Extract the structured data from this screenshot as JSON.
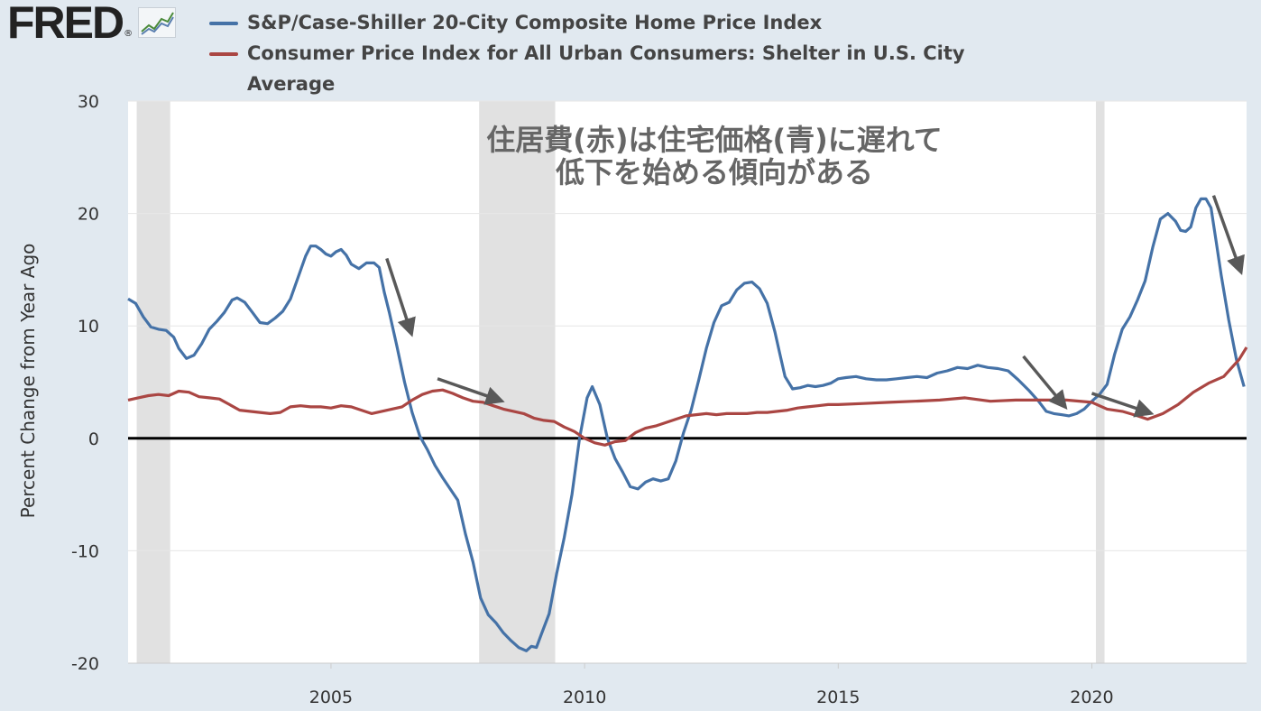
{
  "logo": {
    "text": "FRED",
    "reg": "®",
    "icon": "fred-chart-icon"
  },
  "colors": {
    "background": "#e1e9f0",
    "plot_bg": "#ffffff",
    "recession": "#e1e1e1",
    "series1": "#4572a7",
    "series2": "#aa4643",
    "zero_line": "#000000",
    "arrow": "#595959"
  },
  "annotation": {
    "line1": "住居費(赤)は住宅価格(青)に遅れて",
    "line2": "低下を始める傾向がある"
  },
  "chart_data": {
    "type": "line",
    "title": "",
    "ylabel": "Percent Change from Year Ago",
    "xlabel": "",
    "xlim": [
      2001.0,
      2023.05
    ],
    "ylim": [
      -20,
      30
    ],
    "x_ticks": [
      "2005",
      "2010",
      "2015",
      "2020"
    ],
    "x_tick_values": [
      2005,
      2010,
      2015,
      2020
    ],
    "y_ticks": [
      "30",
      "20",
      "10",
      "0",
      "-10",
      "-20"
    ],
    "y_tick_values": [
      30,
      20,
      10,
      0,
      -10,
      -20
    ],
    "grid": "horizontal",
    "legend": "top",
    "recessions": [
      [
        2001.17,
        2001.83
      ],
      [
        2007.92,
        2009.42
      ],
      [
        2020.08,
        2020.25
      ]
    ],
    "series": [
      {
        "name": "S&P/Case-Shiller 20-City Composite Home Price Index",
        "color": "#4572a7",
        "x": [
          2001.0,
          2001.15,
          2001.3,
          2001.45,
          2001.6,
          2001.75,
          2001.9,
          2002.0,
          2002.15,
          2002.3,
          2002.45,
          2002.6,
          2002.75,
          2002.9,
          2003.05,
          2003.15,
          2003.3,
          2003.45,
          2003.6,
          2003.75,
          2003.9,
          2004.05,
          2004.2,
          2004.35,
          2004.5,
          2004.6,
          2004.7,
          2004.8,
          2004.9,
          2005.0,
          2005.1,
          2005.2,
          2005.3,
          2005.4,
          2005.55,
          2005.7,
          2005.85,
          2005.95,
          2006.05,
          2006.15,
          2006.3,
          2006.45,
          2006.6,
          2006.75,
          2006.9,
          2007.05,
          2007.2,
          2007.35,
          2007.5,
          2007.65,
          2007.8,
          2007.95,
          2008.1,
          2008.25,
          2008.4,
          2008.55,
          2008.7,
          2008.85,
          2008.95,
          2009.05,
          2009.15,
          2009.3,
          2009.45,
          2009.6,
          2009.75,
          2009.9,
          2010.05,
          2010.15,
          2010.3,
          2010.45,
          2010.6,
          2010.75,
          2010.9,
          2011.05,
          2011.2,
          2011.35,
          2011.5,
          2011.65,
          2011.8,
          2011.95,
          2012.1,
          2012.25,
          2012.4,
          2012.55,
          2012.7,
          2012.85,
          2013.0,
          2013.15,
          2013.3,
          2013.45,
          2013.6,
          2013.75,
          2013.85,
          2013.95,
          2014.1,
          2014.25,
          2014.4,
          2014.55,
          2014.7,
          2014.85,
          2015.0,
          2015.15,
          2015.35,
          2015.55,
          2015.75,
          2015.95,
          2016.15,
          2016.35,
          2016.55,
          2016.75,
          2016.95,
          2017.15,
          2017.35,
          2017.55,
          2017.75,
          2017.95,
          2018.15,
          2018.35,
          2018.55,
          2018.75,
          2018.95,
          2019.1,
          2019.25,
          2019.4,
          2019.55,
          2019.7,
          2019.85,
          2020.0,
          2020.15,
          2020.3,
          2020.45,
          2020.6,
          2020.75,
          2020.9,
          2021.05,
          2021.2,
          2021.35,
          2021.5,
          2021.65,
          2021.75,
          2021.85,
          2021.95,
          2022.05,
          2022.15,
          2022.25,
          2022.35,
          2022.45,
          2022.55,
          2022.7,
          2022.85,
          2023.0
        ],
        "values": [
          12.4,
          12.0,
          10.8,
          9.9,
          9.7,
          9.6,
          9.0,
          8.0,
          7.1,
          7.4,
          8.4,
          9.7,
          10.4,
          11.2,
          12.3,
          12.5,
          12.1,
          11.2,
          10.3,
          10.2,
          10.7,
          11.3,
          12.4,
          14.3,
          16.2,
          17.1,
          17.1,
          16.8,
          16.4,
          16.2,
          16.6,
          16.8,
          16.3,
          15.5,
          15.1,
          15.6,
          15.6,
          15.2,
          13.0,
          11.2,
          8.2,
          5.0,
          2.3,
          0.2,
          -1.0,
          -2.4,
          -3.5,
          -4.5,
          -5.5,
          -8.5,
          -11.0,
          -14.2,
          -15.7,
          -16.4,
          -17.3,
          -18.0,
          -18.6,
          -18.9,
          -18.5,
          -18.6,
          -17.4,
          -15.6,
          -12.0,
          -8.8,
          -5.0,
          0.0,
          3.6,
          4.6,
          3.0,
          0.0,
          -1.8,
          -3.0,
          -4.3,
          -4.5,
          -3.9,
          -3.6,
          -3.8,
          -3.6,
          -2.0,
          0.5,
          2.5,
          5.2,
          8.0,
          10.3,
          11.8,
          12.1,
          13.2,
          13.8,
          13.9,
          13.3,
          12.0,
          9.5,
          7.5,
          5.5,
          4.4,
          4.5,
          4.7,
          4.6,
          4.7,
          4.9,
          5.3,
          5.4,
          5.5,
          5.3,
          5.2,
          5.2,
          5.3,
          5.4,
          5.5,
          5.4,
          5.8,
          6.0,
          6.3,
          6.2,
          6.5,
          6.3,
          6.2,
          6.0,
          5.2,
          4.3,
          3.3,
          2.4,
          2.2,
          2.1,
          2.0,
          2.2,
          2.6,
          3.3,
          3.9,
          4.8,
          7.5,
          9.7,
          10.8,
          12.3,
          14.0,
          17.0,
          19.5,
          20.0,
          19.3,
          18.5,
          18.4,
          18.8,
          20.5,
          21.3,
          21.3,
          20.5,
          17.5,
          14.5,
          10.5,
          7.0,
          4.6
        ]
      },
      {
        "name": "Consumer Price Index for All Urban Consumers: Shelter in U.S. City Average",
        "color": "#aa4643",
        "x": [
          2001.0,
          2001.2,
          2001.4,
          2001.6,
          2001.8,
          2002.0,
          2002.2,
          2002.4,
          2002.6,
          2002.8,
          2003.0,
          2003.2,
          2003.4,
          2003.6,
          2003.8,
          2004.0,
          2004.2,
          2004.4,
          2004.6,
          2004.8,
          2005.0,
          2005.2,
          2005.4,
          2005.6,
          2005.8,
          2006.0,
          2006.2,
          2006.4,
          2006.6,
          2006.8,
          2007.0,
          2007.2,
          2007.4,
          2007.6,
          2007.8,
          2008.0,
          2008.2,
          2008.4,
          2008.6,
          2008.8,
          2009.0,
          2009.2,
          2009.4,
          2009.6,
          2009.8,
          2010.0,
          2010.2,
          2010.4,
          2010.6,
          2010.8,
          2011.0,
          2011.2,
          2011.4,
          2011.6,
          2011.8,
          2012.0,
          2012.2,
          2012.4,
          2012.6,
          2012.8,
          2013.0,
          2013.2,
          2013.4,
          2013.6,
          2013.8,
          2014.0,
          2014.2,
          2014.4,
          2014.6,
          2014.8,
          2015.0,
          2015.5,
          2016.0,
          2016.5,
          2017.0,
          2017.5,
          2018.0,
          2018.5,
          2019.0,
          2019.5,
          2020.0,
          2020.3,
          2020.6,
          2020.9,
          2021.1,
          2021.4,
          2021.7,
          2022.0,
          2022.3,
          2022.6,
          2022.9,
          2023.05
        ],
        "values": [
          3.4,
          3.6,
          3.8,
          3.9,
          3.8,
          4.2,
          4.1,
          3.7,
          3.6,
          3.5,
          3.0,
          2.5,
          2.4,
          2.3,
          2.2,
          2.3,
          2.8,
          2.9,
          2.8,
          2.8,
          2.7,
          2.9,
          2.8,
          2.5,
          2.2,
          2.4,
          2.6,
          2.8,
          3.4,
          3.9,
          4.2,
          4.3,
          4.0,
          3.6,
          3.3,
          3.2,
          2.9,
          2.6,
          2.4,
          2.2,
          1.8,
          1.6,
          1.5,
          1.0,
          0.6,
          0.0,
          -0.4,
          -0.6,
          -0.3,
          -0.2,
          0.5,
          0.9,
          1.1,
          1.4,
          1.7,
          2.0,
          2.1,
          2.2,
          2.1,
          2.2,
          2.2,
          2.2,
          2.3,
          2.3,
          2.4,
          2.5,
          2.7,
          2.8,
          2.9,
          3.0,
          3.0,
          3.1,
          3.2,
          3.3,
          3.4,
          3.6,
          3.3,
          3.4,
          3.4,
          3.4,
          3.2,
          2.6,
          2.4,
          2.0,
          1.7,
          2.2,
          3.0,
          4.1,
          4.9,
          5.5,
          7.0,
          8.1
        ]
      }
    ],
    "arrows": [
      {
        "from": [
          2006.1,
          16.0
        ],
        "to": [
          2006.55,
          9.8
        ]
      },
      {
        "from": [
          2007.1,
          5.3
        ],
        "to": [
          2008.25,
          3.5
        ]
      },
      {
        "from": [
          2018.65,
          7.3
        ],
        "to": [
          2019.4,
          3.2
        ]
      },
      {
        "from": [
          2020.0,
          4.0
        ],
        "to": [
          2021.05,
          2.4
        ]
      },
      {
        "from": [
          2022.4,
          21.6
        ],
        "to": [
          2022.9,
          15.3
        ]
      }
    ]
  }
}
